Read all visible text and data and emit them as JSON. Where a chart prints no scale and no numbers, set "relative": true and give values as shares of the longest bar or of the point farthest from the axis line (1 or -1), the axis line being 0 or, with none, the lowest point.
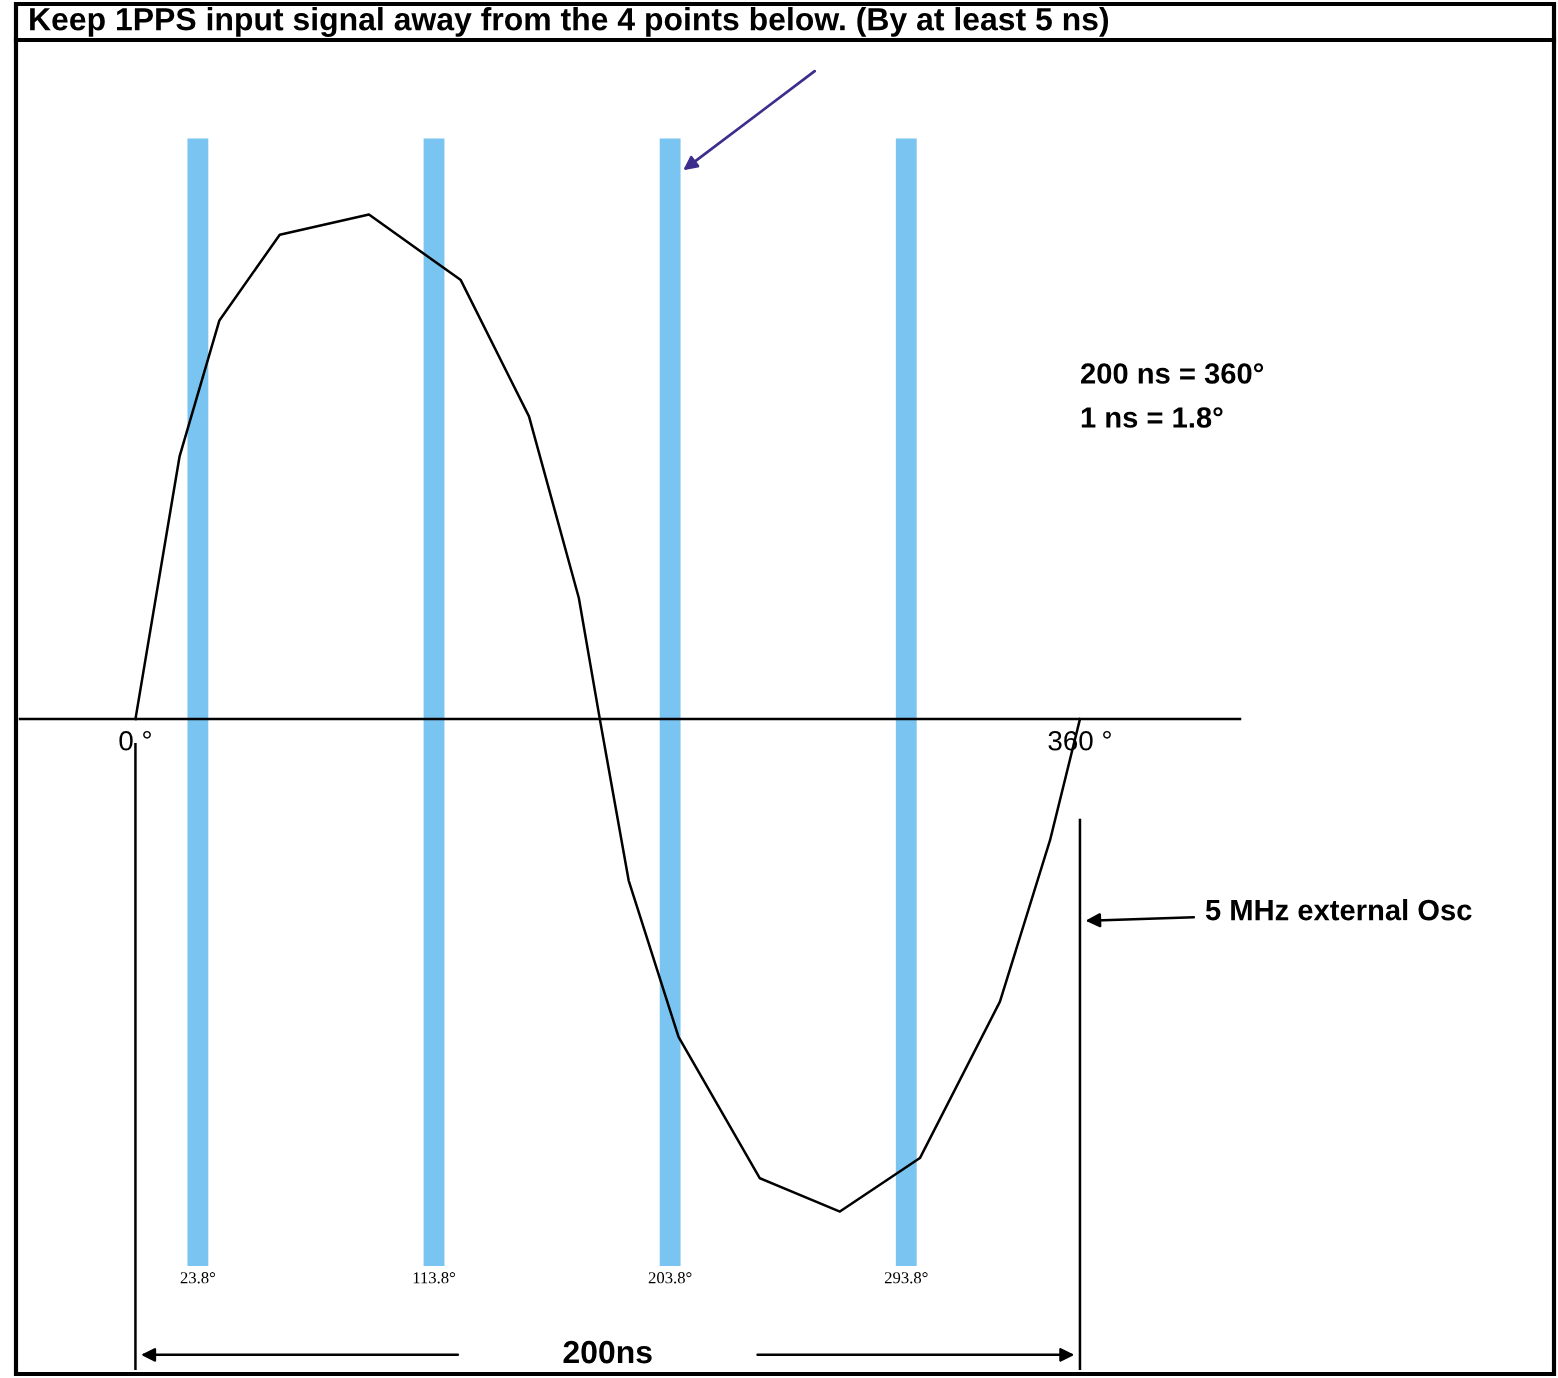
{
  "chart_data": {
    "type": "line",
    "relative": true,
    "title": "Keep 1PPS input signal away from the 4 points below. (By at least 5 ns)",
    "x": [
      0,
      16.8,
      32,
      55,
      89,
      124,
      150,
      169,
      177,
      188,
      207,
      238,
      268.5,
      299,
      329.5,
      348.6,
      360
    ],
    "series": [
      {
        "color": "#000000",
        "values": [
          0,
          0.52,
          0.79,
          0.96,
          1.0,
          0.87,
          0.6,
          0.24,
          0,
          -0.32,
          -0.63,
          -0.91,
          -0.976,
          -0.87,
          -0.56,
          -0.24,
          0
        ]
      }
    ],
    "xlim": [
      -44,
      421
    ],
    "xticks": [
      {
        "value": 0,
        "label": "0 °"
      },
      {
        "value": 360,
        "label": "360 °"
      }
    ],
    "ref_lines": [
      {
        "axis": "x",
        "value": 23.8,
        "label": "23.8°",
        "color": "#79c4f0"
      },
      {
        "axis": "x",
        "value": 113.8,
        "label": "113.8°",
        "color": "#79c4f0"
      },
      {
        "axis": "x",
        "value": 203.8,
        "label": "203.8°",
        "color": "#79c4f0"
      },
      {
        "axis": "x",
        "value": 293.8,
        "label": "293.8°",
        "color": "#79c4f0"
      },
      {
        "axis": "x",
        "value": 0,
        "color": "#000000",
        "line_style": "solid"
      },
      {
        "axis": "x",
        "value": 360,
        "color": "#000000",
        "line_style": "solid"
      }
    ],
    "annotations": [
      "200 ns = 360°",
      "1 ns = 1.8°",
      "200ns",
      "5 MHz external Osc"
    ],
    "grid": false,
    "marker": "none",
    "line_style": "solid"
  }
}
